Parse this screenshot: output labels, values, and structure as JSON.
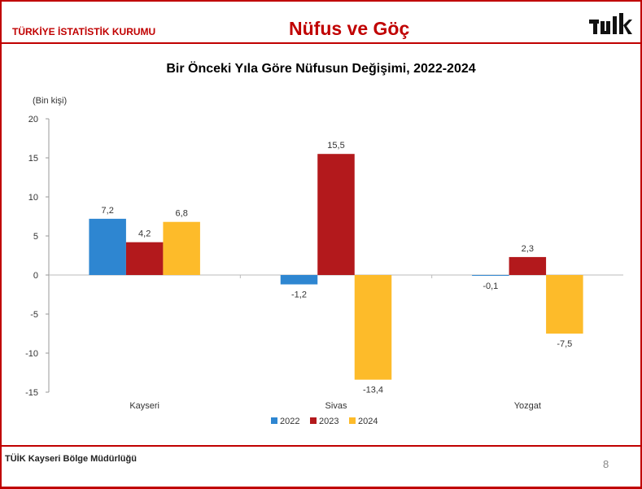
{
  "header": {
    "org": "TÜRKİYE İSTATİSTİK KURUMU",
    "title": "Nüfus ve Göç",
    "logo_text": "TÜİK"
  },
  "footer": {
    "text": "TÜİK Kayseri Bölge Müdürlüğü",
    "page": "8"
  },
  "chart_data": {
    "type": "bar",
    "title": "Bir Önceki Yıla Göre Nüfusun Değişimi, 2022-2024",
    "ylabel": "(Bin kişi)",
    "ylim": [
      -15,
      20
    ],
    "yticks": [
      -15,
      -10,
      -5,
      0,
      5,
      10,
      15,
      20
    ],
    "categories": [
      "Kayseri",
      "Sivas",
      "Yozgat"
    ],
    "series": [
      {
        "name": "2022",
        "color": "#2e86d1",
        "values": [
          7.2,
          -1.2,
          -0.1
        ],
        "labels": [
          "7,2",
          "-1,2",
          "-0,1"
        ]
      },
      {
        "name": "2023",
        "color": "#b3191c",
        "values": [
          4.2,
          15.5,
          2.3
        ],
        "labels": [
          "4,2",
          "15,5",
          "2,3"
        ]
      },
      {
        "name": "2024",
        "color": "#fdbb2a",
        "values": [
          6.8,
          -13.4,
          -7.5
        ],
        "labels": [
          "6,8",
          "-13,4",
          "-7,5"
        ]
      }
    ],
    "legend": "bottom",
    "grid": false
  }
}
